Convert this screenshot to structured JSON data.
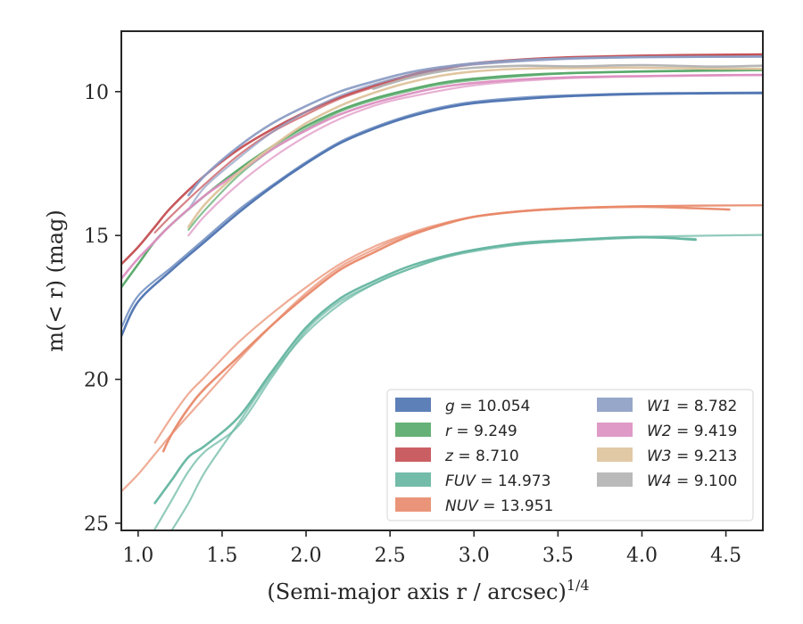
{
  "chart_data": {
    "type": "line",
    "title": "",
    "xlabel": "(Semi-major axis r / arcsec)",
    "xlabel_superscript": "1/4",
    "ylabel": "m(< r) (mag)",
    "xlim": [
      0.9,
      4.72
    ],
    "ylim": [
      25.25,
      7.9
    ],
    "y_inverted": true,
    "x_ticks": [
      "1.0",
      "1.5",
      "2.0",
      "2.5",
      "3.0",
      "3.5",
      "4.0",
      "4.5"
    ],
    "y_ticks": [
      "10",
      "15",
      "20",
      "25"
    ],
    "grid": false,
    "legend_position": "lower-right",
    "legend_columns": 2,
    "series": [
      {
        "name": "g",
        "legend_value": "10.054",
        "color": "#4c72b0",
        "curves": [
          {
            "x": [
              0.9,
              1.0,
              1.2,
              1.4,
              1.6,
              1.8,
              2.0,
              2.2,
              2.4,
              2.6,
              2.8,
              3.0,
              3.3,
              3.6,
              4.0,
              4.4,
              4.72
            ],
            "y": [
              18.5,
              17.3,
              16.2,
              15.2,
              14.2,
              13.3,
              12.5,
              11.8,
              11.3,
              10.9,
              10.6,
              10.4,
              10.25,
              10.15,
              10.08,
              10.06,
              10.05
            ]
          },
          {
            "x": [
              0.9,
              1.0,
              1.2,
              1.4,
              1.6,
              1.8,
              2.0,
              2.2,
              2.4,
              2.6,
              2.8,
              3.0,
              3.3,
              3.6,
              4.0,
              4.4,
              4.72
            ],
            "y": [
              18.2,
              17.1,
              16.1,
              15.1,
              14.1,
              13.25,
              12.45,
              11.75,
              11.25,
              10.85,
              10.55,
              10.35,
              10.2,
              10.12,
              10.06,
              10.04,
              10.03
            ]
          }
        ]
      },
      {
        "name": "r",
        "legend_value": "9.249",
        "color": "#55a868",
        "curves": [
          {
            "x": [
              0.9,
              1.0,
              1.1,
              1.2,
              1.4,
              1.6,
              1.8,
              2.0,
              2.2,
              2.4,
              2.6,
              2.8,
              3.0,
              3.3,
              3.6,
              4.0,
              4.4,
              4.72
            ],
            "y": [
              16.8,
              16.0,
              15.2,
              14.6,
              13.6,
              12.7,
              11.9,
              11.2,
              10.65,
              10.25,
              9.95,
              9.7,
              9.55,
              9.42,
              9.35,
              9.3,
              9.27,
              9.25
            ]
          },
          {
            "x": [
              1.3,
              1.4,
              1.6,
              1.8,
              2.0,
              2.2,
              2.4,
              2.6,
              2.8,
              3.0,
              3.5,
              4.0,
              4.72
            ],
            "y": [
              14.8,
              14.1,
              12.9,
              12.0,
              11.3,
              10.7,
              10.3,
              10.0,
              9.75,
              9.6,
              9.38,
              9.3,
              9.25
            ]
          }
        ]
      },
      {
        "name": "z",
        "legend_value": "8.710",
        "color": "#c44e52",
        "curves": [
          {
            "x": [
              0.9,
              1.0,
              1.1,
              1.2,
              1.4,
              1.6,
              1.8,
              2.0,
              2.2,
              2.4,
              2.6,
              2.8,
              3.0,
              3.3,
              3.6,
              4.0,
              4.4,
              4.72
            ],
            "y": [
              16.0,
              15.4,
              14.7,
              14.0,
              12.9,
              12.0,
              11.3,
              10.7,
              10.2,
              9.8,
              9.45,
              9.2,
              9.02,
              8.88,
              8.8,
              8.75,
              8.72,
              8.71
            ]
          },
          {
            "x": [
              1.1,
              1.2,
              1.4,
              1.6,
              1.8,
              2.0,
              2.2,
              2.4,
              2.6,
              2.8,
              3.0,
              3.5,
              4.0,
              4.72
            ],
            "y": [
              14.9,
              14.3,
              13.2,
              12.2,
              11.4,
              10.8,
              10.25,
              9.85,
              9.5,
              9.25,
              9.05,
              8.85,
              8.76,
              8.71
            ]
          }
        ]
      },
      {
        "name": "FUV",
        "legend_value": "14.973",
        "color": "#64b5a0",
        "curves": [
          {
            "x": [
              1.1,
              1.2,
              1.3,
              1.4,
              1.6,
              1.8,
              2.0,
              2.2,
              2.4,
              2.6,
              2.8,
              3.0,
              3.3,
              3.6,
              4.0,
              4.32
            ],
            "y": [
              24.3,
              23.5,
              22.7,
              22.3,
              21.3,
              19.7,
              18.2,
              17.2,
              16.6,
              16.1,
              15.75,
              15.5,
              15.25,
              15.15,
              15.05,
              15.15
            ]
          },
          {
            "x": [
              1.1,
              1.2,
              1.3,
              1.4,
              1.6,
              1.8,
              2.0,
              2.2,
              2.4,
              2.6,
              2.8,
              3.0,
              3.3,
              3.6,
              4.0,
              4.32
            ],
            "y": [
              25.2,
              24.2,
              23.2,
              22.5,
              21.6,
              19.9,
              18.3,
              17.3,
              16.7,
              16.2,
              15.8,
              15.55,
              15.3,
              15.18,
              15.08,
              15.12
            ]
          },
          {
            "x": [
              1.2,
              1.3,
              1.4,
              1.6,
              1.8,
              2.0,
              2.2,
              2.4,
              2.6,
              3.0,
              3.5,
              4.0,
              4.72
            ],
            "y": [
              25.25,
              24.3,
              23.2,
              21.5,
              19.8,
              18.4,
              17.4,
              16.7,
              16.2,
              15.5,
              15.2,
              15.05,
              14.98
            ]
          }
        ]
      },
      {
        "name": "NUV",
        "legend_value": "13.951",
        "color": "#e8896a",
        "curves": [
          {
            "x": [
              1.15,
              1.2,
              1.3,
              1.4,
              1.6,
              1.8,
              2.0,
              2.2,
              2.4,
              2.6,
              2.8,
              3.0,
              3.3,
              3.6,
              4.0,
              4.3,
              4.52
            ],
            "y": [
              22.5,
              21.9,
              21.0,
              20.3,
              19.2,
              18.1,
              17.1,
              16.2,
              15.6,
              15.05,
              14.65,
              14.35,
              14.15,
              14.05,
              14.0,
              14.05,
              14.1
            ]
          },
          {
            "x": [
              1.1,
              1.2,
              1.3,
              1.4,
              1.6,
              1.8,
              2.0,
              2.2,
              2.4,
              2.6,
              2.8,
              3.0,
              3.3,
              3.6,
              4.0,
              4.72
            ],
            "y": [
              22.2,
              21.3,
              20.5,
              19.9,
              18.7,
              17.7,
              16.8,
              16.0,
              15.4,
              14.95,
              14.6,
              14.35,
              14.15,
              14.05,
              13.98,
              13.95
            ]
          },
          {
            "x": [
              0.9,
              1.0,
              1.1,
              1.2,
              1.4,
              1.6,
              1.8,
              2.0,
              2.2,
              2.4,
              2.6,
              3.0,
              3.5,
              4.0,
              4.72
            ],
            "y": [
              23.9,
              23.3,
              22.6,
              21.9,
              20.6,
              19.3,
              18.1,
              17.0,
              16.1,
              15.5,
              15.0,
              14.35,
              14.07,
              13.98,
              13.95
            ]
          }
        ]
      },
      {
        "name": "W1",
        "legend_value": "8.782",
        "color": "#8c9dc4",
        "curves": [
          {
            "x": [
              1.3,
              1.4,
              1.6,
              1.8,
              2.0,
              2.2,
              2.4,
              2.6,
              2.8,
              3.0,
              3.3,
              3.6,
              4.0,
              4.4,
              4.72
            ],
            "y": [
              13.6,
              12.9,
              11.9,
              11.1,
              10.5,
              10.0,
              9.65,
              9.35,
              9.15,
              9.02,
              8.9,
              8.84,
              8.8,
              8.79,
              8.78
            ]
          },
          {
            "x": [
              1.3,
              1.4,
              1.6,
              1.8,
              2.0,
              2.2,
              2.4,
              2.6,
              2.8,
              3.0,
              3.5,
              4.0,
              4.72
            ],
            "y": [
              14.1,
              13.3,
              12.3,
              11.4,
              10.7,
              10.15,
              9.75,
              9.45,
              9.22,
              9.06,
              8.88,
              8.81,
              8.79
            ]
          }
        ]
      },
      {
        "name": "W2",
        "legend_value": "9.419",
        "color": "#dd8fc1",
        "curves": [
          {
            "x": [
              0.9,
              1.0,
              1.1,
              1.2,
              1.4,
              1.6,
              1.8,
              2.0,
              2.2,
              2.4,
              2.6,
              2.8,
              3.0,
              3.3,
              3.6,
              4.0,
              4.4,
              4.72
            ],
            "y": [
              16.5,
              15.8,
              15.2,
              14.6,
              13.6,
              12.8,
              12.0,
              11.35,
              10.8,
              10.4,
              10.1,
              9.85,
              9.7,
              9.57,
              9.5,
              9.46,
              9.43,
              9.42
            ]
          },
          {
            "x": [
              1.3,
              1.4,
              1.6,
              1.8,
              2.0,
              2.2,
              2.4,
              2.6,
              3.0,
              3.5,
              4.0,
              4.72
            ],
            "y": [
              15.0,
              14.3,
              13.2,
              12.3,
              11.55,
              10.95,
              10.5,
              10.2,
              9.78,
              9.55,
              9.47,
              9.42
            ]
          }
        ]
      },
      {
        "name": "W3",
        "legend_value": "9.213",
        "color": "#dec39c",
        "curves": [
          {
            "x": [
              1.3,
              1.4,
              1.6,
              1.8,
              2.0,
              2.2,
              2.4,
              2.6,
              2.8,
              3.0,
              3.3,
              3.6,
              4.0,
              4.4,
              4.72
            ],
            "y": [
              14.7,
              13.9,
              12.8,
              11.9,
              11.1,
              10.5,
              10.05,
              9.7,
              9.45,
              9.3,
              9.2,
              9.18,
              9.17,
              9.2,
              9.21
            ]
          }
        ]
      },
      {
        "name": "W4",
        "legend_value": "9.100",
        "color": "#b2b2b2",
        "curves": [
          {
            "x": [
              2.4,
              2.6,
              2.8,
              3.0,
              3.3,
              3.6,
              4.0,
              4.4,
              4.72
            ],
            "y": [
              9.9,
              9.55,
              9.3,
              9.17,
              9.1,
              9.12,
              9.08,
              9.13,
              9.1
            ]
          }
        ]
      }
    ]
  }
}
